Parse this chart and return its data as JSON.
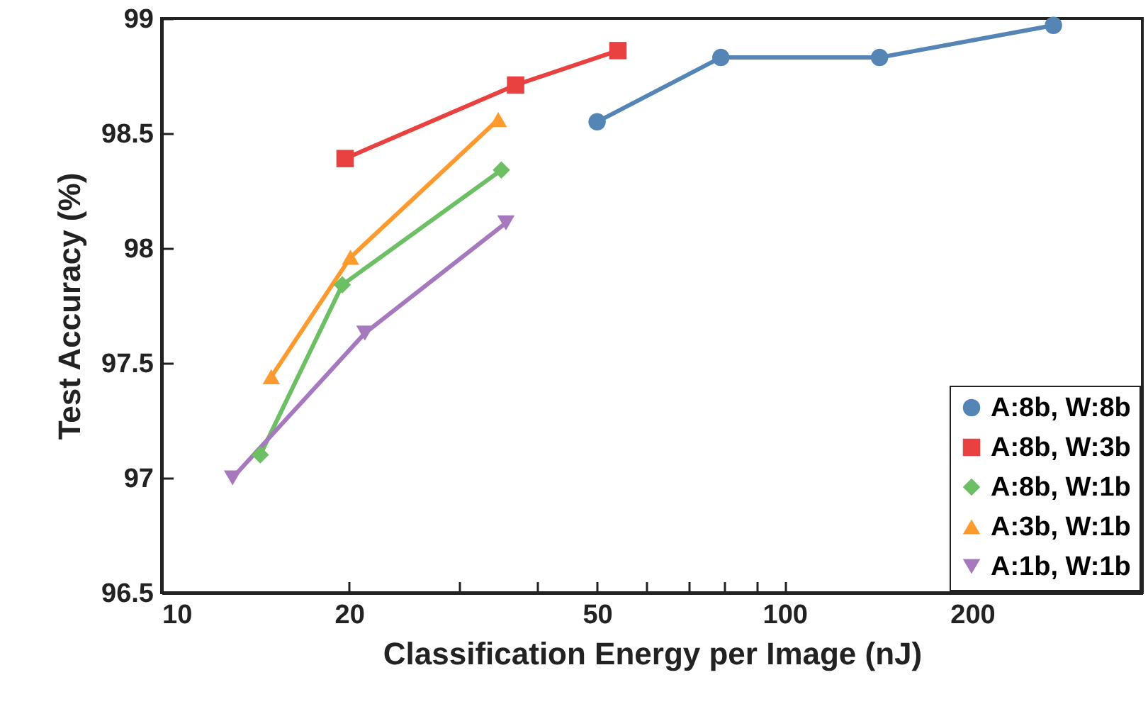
{
  "chart_data": {
    "type": "line",
    "xlabel": "Classification Energy per Image (nJ)",
    "ylabel": "Test Accuracy (%)",
    "log": "x",
    "grid": false,
    "legend": "bottom right",
    "xlim": [
      10,
      375
    ],
    "xticks": [
      10,
      20,
      {
        "value": 30,
        "label": null
      },
      {
        "value": 40,
        "label": null
      },
      50,
      {
        "value": 60,
        "label": null
      },
      {
        "value": 70,
        "label": null
      },
      {
        "value": 80,
        "label": null
      },
      {
        "value": 90,
        "label": null
      },
      100,
      200,
      {
        "value": 300,
        "label": null
      }
    ],
    "ylim": [
      96.5,
      99
    ],
    "yticks": [
      96.5,
      97,
      97.5,
      98,
      98.5,
      99
    ],
    "series": [
      {
        "name": "A:8b, W:8b",
        "color": "#5485b5",
        "marker": "circle",
        "x": [
          50,
          79,
          142,
          270
        ],
        "values": [
          98.55,
          98.83,
          98.83,
          98.97
        ]
      },
      {
        "name": "A:8b, W:3b",
        "color": "#e8413f",
        "marker": "square",
        "x": [
          19.7,
          37,
          54
        ],
        "values": [
          98.39,
          98.71,
          98.86
        ]
      },
      {
        "name": "A:8b, W:1b",
        "color": "#6cbf62",
        "marker": "diamond",
        "x": [
          14.4,
          19.5,
          35.1
        ],
        "values": [
          97.1,
          97.84,
          98.34
        ]
      },
      {
        "name": "A:3b, W:1b",
        "color": "#ff9a2e",
        "marker": "triangle",
        "x": [
          15,
          20.1,
          34.7
        ],
        "values": [
          97.44,
          97.96,
          98.56
        ]
      },
      {
        "name": "A:1b, W:1b",
        "color": "#a678bd",
        "marker": "triangle-down",
        "x": [
          13,
          21.2,
          35.7
        ],
        "values": [
          97.0,
          97.63,
          98.11
        ]
      }
    ]
  }
}
